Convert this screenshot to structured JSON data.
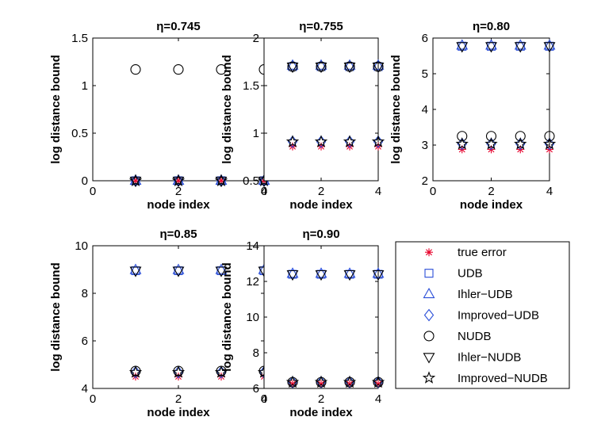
{
  "chart_data": [
    {
      "type": "scatter",
      "title": "η=0.745",
      "xlabel": "node index",
      "ylabel": "log distance bound",
      "xlim": [
        0,
        4
      ],
      "ylim": [
        0,
        1.5
      ],
      "xticks": [
        0,
        2,
        4
      ],
      "yticks": [
        0,
        0.5,
        1,
        1.5
      ],
      "x": [
        1,
        2,
        3,
        4
      ],
      "series": [
        {
          "name": "true error",
          "marker": "asterisk",
          "values": [
            0.0,
            0.0,
            0.0,
            0.0
          ]
        },
        {
          "name": "UDB",
          "marker": "square",
          "values": [
            0.0,
            0.0,
            0.0,
            0.0
          ]
        },
        {
          "name": "Ihler-UDB",
          "marker": "triangle-up",
          "values": [
            0.0,
            0.0,
            0.0,
            0.0
          ]
        },
        {
          "name": "Improved-UDB",
          "marker": "diamond",
          "values": [
            0.0,
            0.0,
            0.0,
            0.0
          ]
        },
        {
          "name": "NUDB",
          "marker": "circle",
          "values": [
            1.17,
            1.17,
            1.17,
            1.17
          ]
        },
        {
          "name": "Ihler-NUDB",
          "marker": "triangle-down",
          "values": [
            0.0,
            0.0,
            0.0,
            0.0
          ]
        },
        {
          "name": "Improved-NUDB",
          "marker": "pentagram",
          "values": [
            0.0,
            0.0,
            0.0,
            0.0
          ]
        }
      ]
    },
    {
      "type": "scatter",
      "title": "η=0.755",
      "xlabel": "node index",
      "ylabel": "log distance bound",
      "xlim": [
        0,
        4
      ],
      "ylim": [
        0.5,
        2
      ],
      "xticks": [
        0,
        2,
        4
      ],
      "yticks": [
        0.5,
        1,
        1.5,
        2
      ],
      "x": [
        1,
        2,
        3,
        4
      ],
      "series": [
        {
          "name": "true error",
          "marker": "asterisk",
          "values": [
            0.86,
            0.86,
            0.86,
            0.86
          ]
        },
        {
          "name": "UDB",
          "marker": "square",
          "values": [
            1.7,
            1.7,
            1.7,
            1.7
          ]
        },
        {
          "name": "Ihler-UDB",
          "marker": "triangle-up",
          "values": [
            1.71,
            1.71,
            1.71,
            1.71
          ]
        },
        {
          "name": "Improved-UDB",
          "marker": "diamond",
          "values": [
            0.91,
            0.91,
            0.91,
            0.91
          ]
        },
        {
          "name": "NUDB",
          "marker": "circle",
          "values": [
            1.7,
            1.7,
            1.7,
            1.7
          ]
        },
        {
          "name": "Ihler-NUDB",
          "marker": "triangle-down",
          "values": [
            1.7,
            1.7,
            1.7,
            1.7
          ]
        },
        {
          "name": "Improved-NUDB",
          "marker": "pentagram",
          "values": [
            0.91,
            0.91,
            0.91,
            0.91
          ]
        }
      ]
    },
    {
      "type": "scatter",
      "title": "η=0.80",
      "xlabel": "node index",
      "ylabel": "log distance bound",
      "xlim": [
        0,
        4
      ],
      "ylim": [
        2,
        6
      ],
      "xticks": [
        0,
        2,
        4
      ],
      "yticks": [
        2,
        3,
        4,
        5,
        6
      ],
      "x": [
        1,
        2,
        3,
        4
      ],
      "series": [
        {
          "name": "true error",
          "marker": "asterisk",
          "values": [
            2.88,
            2.88,
            2.88,
            2.88
          ]
        },
        {
          "name": "UDB",
          "marker": "square",
          "values": [
            5.77,
            5.77,
            5.77,
            5.77
          ]
        },
        {
          "name": "Ihler-UDB",
          "marker": "triangle-up",
          "values": [
            5.79,
            5.79,
            5.79,
            5.79
          ]
        },
        {
          "name": "Improved-UDB",
          "marker": "diamond",
          "values": [
            3.03,
            3.03,
            3.03,
            3.03
          ]
        },
        {
          "name": "NUDB",
          "marker": "circle",
          "values": [
            3.25,
            3.25,
            3.25,
            3.25
          ]
        },
        {
          "name": "Ihler-NUDB",
          "marker": "triangle-down",
          "values": [
            5.77,
            5.77,
            5.77,
            5.77
          ]
        },
        {
          "name": "Improved-NUDB",
          "marker": "pentagram",
          "values": [
            3.03,
            3.03,
            3.03,
            3.03
          ]
        }
      ]
    },
    {
      "type": "scatter",
      "title": "η=0.85",
      "xlabel": "node index",
      "ylabel": "log distance bound",
      "xlim": [
        0,
        4
      ],
      "ylim": [
        4,
        10
      ],
      "xticks": [
        0,
        2,
        4
      ],
      "yticks": [
        4,
        6,
        8,
        10
      ],
      "x": [
        1,
        2,
        3,
        4
      ],
      "series": [
        {
          "name": "true error",
          "marker": "asterisk",
          "values": [
            4.5,
            4.5,
            4.5,
            4.5
          ]
        },
        {
          "name": "UDB",
          "marker": "square",
          "values": [
            8.95,
            8.95,
            8.95,
            8.95
          ]
        },
        {
          "name": "Ihler-UDB",
          "marker": "triangle-up",
          "values": [
            8.98,
            8.98,
            8.98,
            8.98
          ]
        },
        {
          "name": "Improved-UDB",
          "marker": "diamond",
          "values": [
            4.68,
            4.68,
            4.68,
            4.68
          ]
        },
        {
          "name": "NUDB",
          "marker": "circle",
          "values": [
            4.73,
            4.73,
            4.73,
            4.73
          ]
        },
        {
          "name": "Ihler-NUDB",
          "marker": "triangle-down",
          "values": [
            8.95,
            8.95,
            8.95,
            8.95
          ]
        },
        {
          "name": "Improved-NUDB",
          "marker": "pentagram",
          "values": [
            4.68,
            4.68,
            4.68,
            4.68
          ]
        }
      ]
    },
    {
      "type": "scatter",
      "title": "η=0.90",
      "xlabel": "node index",
      "ylabel": "log distance bound",
      "xlim": [
        0,
        4
      ],
      "ylim": [
        6,
        14
      ],
      "xticks": [
        0,
        2,
        4
      ],
      "yticks": [
        6,
        8,
        10,
        12,
        14
      ],
      "x": [
        1,
        2,
        3,
        4
      ],
      "series": [
        {
          "name": "true error",
          "marker": "asterisk",
          "values": [
            6.25,
            6.25,
            6.25,
            6.25
          ]
        },
        {
          "name": "UDB",
          "marker": "square",
          "values": [
            12.4,
            12.4,
            12.4,
            12.4
          ]
        },
        {
          "name": "Ihler-UDB",
          "marker": "triangle-up",
          "values": [
            12.43,
            12.43,
            12.43,
            12.43
          ]
        },
        {
          "name": "Improved-UDB",
          "marker": "diamond",
          "values": [
            6.35,
            6.35,
            6.35,
            6.35
          ]
        },
        {
          "name": "NUDB",
          "marker": "circle",
          "values": [
            6.35,
            6.35,
            6.35,
            6.35
          ]
        },
        {
          "name": "Ihler-NUDB",
          "marker": "triangle-down",
          "values": [
            12.4,
            12.4,
            12.4,
            12.4
          ]
        },
        {
          "name": "Improved-NUDB",
          "marker": "pentagram",
          "values": [
            6.35,
            6.35,
            6.35,
            6.35
          ]
        }
      ]
    }
  ],
  "legend": {
    "placement": "bottom-right",
    "entries": [
      {
        "label": "true error",
        "marker": "asterisk",
        "color": "#e8002a"
      },
      {
        "label": "UDB",
        "marker": "square",
        "color": "#2b4fd8"
      },
      {
        "label": "Ihler−UDB",
        "marker": "triangle-up",
        "color": "#2b4fd8"
      },
      {
        "label": "Improved−UDB",
        "marker": "diamond",
        "color": "#2b4fd8"
      },
      {
        "label": "NUDB",
        "marker": "circle",
        "color": "#000000"
      },
      {
        "label": "Ihler−NUDB",
        "marker": "triangle-down",
        "color": "#000000"
      },
      {
        "label": "Improved−NUDB",
        "marker": "pentagram",
        "color": "#000000"
      }
    ]
  },
  "colors": {
    "red": "#e8002a",
    "blue": "#2b4fd8",
    "black": "#000000"
  }
}
